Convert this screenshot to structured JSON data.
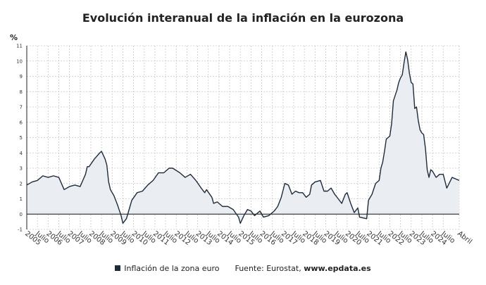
{
  "header": {
    "title": "Evolución interanual de la inflación en la eurozona",
    "unit": "%"
  },
  "legend": {
    "series_label": "Inflación de la zona euro",
    "source_prefix": "Fuente: Eurostat, ",
    "source_site": "www.epdata.es"
  },
  "colors": {
    "line": "#1d2b3a",
    "fill": "#eaeef2",
    "grid": "#c8c8c8",
    "zero_line": "#111111"
  },
  "chart_data": {
    "type": "area",
    "title": "Evolución interanual de la inflación en la eurozona",
    "xlabel": "",
    "ylabel": "%",
    "ylim": [
      -1,
      11
    ],
    "yticks": [
      -1,
      0,
      1,
      2,
      3,
      4,
      5,
      6,
      7,
      8,
      9,
      10,
      11
    ],
    "grid": true,
    "legend_position": "bottom",
    "x_start": "2005-01",
    "x_end": "2025-04",
    "x_ticks": [
      {
        "date": "2005-01",
        "label": "2005"
      },
      {
        "date": "2005-07",
        "label": "Julio"
      },
      {
        "date": "2006-01",
        "label": "2006"
      },
      {
        "date": "2006-07",
        "label": "Julio"
      },
      {
        "date": "2007-01",
        "label": "2007"
      },
      {
        "date": "2007-07",
        "label": "Julio"
      },
      {
        "date": "2008-01",
        "label": "2008"
      },
      {
        "date": "2008-07",
        "label": "Julio"
      },
      {
        "date": "2009-01",
        "label": "2009"
      },
      {
        "date": "2009-07",
        "label": "Julio"
      },
      {
        "date": "2010-01",
        "label": "2010"
      },
      {
        "date": "2010-07",
        "label": "Julio"
      },
      {
        "date": "2011-01",
        "label": "2011"
      },
      {
        "date": "2011-07",
        "label": "Julio"
      },
      {
        "date": "2012-01",
        "label": "2012"
      },
      {
        "date": "2012-07",
        "label": "Julio"
      },
      {
        "date": "2013-01",
        "label": "2013"
      },
      {
        "date": "2013-07",
        "label": "Julio"
      },
      {
        "date": "2014-01",
        "label": "2014"
      },
      {
        "date": "2014-07",
        "label": "Julio"
      },
      {
        "date": "2015-01",
        "label": "2015"
      },
      {
        "date": "2015-07",
        "label": "Julio"
      },
      {
        "date": "2016-01",
        "label": "2016"
      },
      {
        "date": "2016-07",
        "label": "Julio"
      },
      {
        "date": "2017-01",
        "label": "2017"
      },
      {
        "date": "2017-07",
        "label": "Julio"
      },
      {
        "date": "2018-01",
        "label": "2018"
      },
      {
        "date": "2018-07",
        "label": "Julio"
      },
      {
        "date": "2019-01",
        "label": "2019"
      },
      {
        "date": "2019-07",
        "label": "Julio"
      },
      {
        "date": "2020-01",
        "label": "2020"
      },
      {
        "date": "2020-07",
        "label": "Julio"
      },
      {
        "date": "2021-01",
        "label": "2021"
      },
      {
        "date": "2021-07",
        "label": "Julio"
      },
      {
        "date": "2022-01",
        "label": "2022"
      },
      {
        "date": "2022-07",
        "label": "Julio"
      },
      {
        "date": "2023-01",
        "label": "2023"
      },
      {
        "date": "2023-07",
        "label": "Julio"
      },
      {
        "date": "2024-01",
        "label": "2024"
      },
      {
        "date": "2024-07",
        "label": "Julio"
      },
      {
        "date": "2025-04",
        "label": "Abril"
      }
    ],
    "series": [
      {
        "name": "Inflación de la zona euro",
        "points": [
          [
            "2005-01",
            1.9
          ],
          [
            "2005-04",
            2.1
          ],
          [
            "2005-07",
            2.2
          ],
          [
            "2005-10",
            2.5
          ],
          [
            "2006-01",
            2.4
          ],
          [
            "2006-04",
            2.5
          ],
          [
            "2006-07",
            2.4
          ],
          [
            "2006-10",
            1.6
          ],
          [
            "2007-01",
            1.8
          ],
          [
            "2007-04",
            1.9
          ],
          [
            "2007-07",
            1.8
          ],
          [
            "2007-10",
            2.6
          ],
          [
            "2007-11",
            3.1
          ],
          [
            "2007-12",
            3.1
          ],
          [
            "2008-03",
            3.6
          ],
          [
            "2008-06",
            4.0
          ],
          [
            "2008-07",
            4.1
          ],
          [
            "2008-09",
            3.6
          ],
          [
            "2008-10",
            3.2
          ],
          [
            "2008-11",
            2.1
          ],
          [
            "2008-12",
            1.6
          ],
          [
            "2009-02",
            1.2
          ],
          [
            "2009-04",
            0.6
          ],
          [
            "2009-06",
            -0.1
          ],
          [
            "2009-07",
            -0.6
          ],
          [
            "2009-09",
            -0.3
          ],
          [
            "2009-11",
            0.5
          ],
          [
            "2009-12",
            0.9
          ],
          [
            "2010-03",
            1.4
          ],
          [
            "2010-06",
            1.5
          ],
          [
            "2010-09",
            1.9
          ],
          [
            "2010-12",
            2.2
          ],
          [
            "2011-03",
            2.7
          ],
          [
            "2011-06",
            2.7
          ],
          [
            "2011-09",
            3.0
          ],
          [
            "2011-11",
            3.0
          ],
          [
            "2012-03",
            2.7
          ],
          [
            "2012-06",
            2.4
          ],
          [
            "2012-09",
            2.6
          ],
          [
            "2012-12",
            2.2
          ],
          [
            "2013-03",
            1.7
          ],
          [
            "2013-05",
            1.4
          ],
          [
            "2013-06",
            1.6
          ],
          [
            "2013-09",
            1.1
          ],
          [
            "2013-10",
            0.7
          ],
          [
            "2013-12",
            0.8
          ],
          [
            "2014-03",
            0.5
          ],
          [
            "2014-06",
            0.5
          ],
          [
            "2014-09",
            0.3
          ],
          [
            "2014-12",
            -0.2
          ],
          [
            "2015-01",
            -0.6
          ],
          [
            "2015-03",
            -0.1
          ],
          [
            "2015-05",
            0.3
          ],
          [
            "2015-07",
            0.2
          ],
          [
            "2015-09",
            -0.1
          ],
          [
            "2015-12",
            0.2
          ],
          [
            "2016-02",
            -0.2
          ],
          [
            "2016-05",
            -0.1
          ],
          [
            "2016-08",
            0.2
          ],
          [
            "2016-10",
            0.5
          ],
          [
            "2016-12",
            1.1
          ],
          [
            "2017-02",
            2.0
          ],
          [
            "2017-04",
            1.9
          ],
          [
            "2017-06",
            1.3
          ],
          [
            "2017-08",
            1.5
          ],
          [
            "2017-10",
            1.4
          ],
          [
            "2017-12",
            1.4
          ],
          [
            "2018-02",
            1.1
          ],
          [
            "2018-04",
            1.3
          ],
          [
            "2018-05",
            1.9
          ],
          [
            "2018-07",
            2.1
          ],
          [
            "2018-10",
            2.2
          ],
          [
            "2018-12",
            1.5
          ],
          [
            "2019-02",
            1.5
          ],
          [
            "2019-04",
            1.7
          ],
          [
            "2019-06",
            1.3
          ],
          [
            "2019-08",
            1.0
          ],
          [
            "2019-10",
            0.7
          ],
          [
            "2019-12",
            1.3
          ],
          [
            "2020-01",
            1.4
          ],
          [
            "2020-03",
            0.7
          ],
          [
            "2020-05",
            0.1
          ],
          [
            "2020-07",
            0.4
          ],
          [
            "2020-08",
            -0.2
          ],
          [
            "2020-12",
            -0.3
          ],
          [
            "2021-01",
            0.9
          ],
          [
            "2021-03",
            1.3
          ],
          [
            "2021-05",
            2.0
          ],
          [
            "2021-07",
            2.2
          ],
          [
            "2021-08",
            3.0
          ],
          [
            "2021-09",
            3.4
          ],
          [
            "2021-10",
            4.1
          ],
          [
            "2021-11",
            4.9
          ],
          [
            "2021-12",
            5.0
          ],
          [
            "2022-01",
            5.1
          ],
          [
            "2022-02",
            5.9
          ],
          [
            "2022-03",
            7.4
          ],
          [
            "2022-05",
            8.1
          ],
          [
            "2022-06",
            8.6
          ],
          [
            "2022-07",
            8.9
          ],
          [
            "2022-08",
            9.1
          ],
          [
            "2022-09",
            9.9
          ],
          [
            "2022-10",
            10.6
          ],
          [
            "2022-11",
            10.1
          ],
          [
            "2022-12",
            9.2
          ],
          [
            "2023-01",
            8.6
          ],
          [
            "2023-02",
            8.5
          ],
          [
            "2023-03",
            6.9
          ],
          [
            "2023-04",
            7.0
          ],
          [
            "2023-05",
            6.1
          ],
          [
            "2023-06",
            5.5
          ],
          [
            "2023-07",
            5.3
          ],
          [
            "2023-08",
            5.2
          ],
          [
            "2023-09",
            4.3
          ],
          [
            "2023-10",
            2.9
          ],
          [
            "2023-11",
            2.4
          ],
          [
            "2023-12",
            2.9
          ],
          [
            "2024-01",
            2.8
          ],
          [
            "2024-03",
            2.4
          ],
          [
            "2024-05",
            2.6
          ],
          [
            "2024-07",
            2.6
          ],
          [
            "2024-09",
            1.7
          ],
          [
            "2024-12",
            2.4
          ],
          [
            "2025-02",
            2.3
          ],
          [
            "2025-04",
            2.2
          ]
        ]
      }
    ]
  }
}
